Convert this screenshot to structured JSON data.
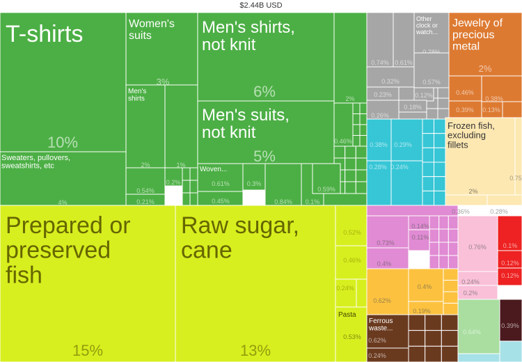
{
  "chart_data": {
    "type": "treemap",
    "title": "$2.44B USD",
    "colors": {
      "textiles": "#4caf45",
      "foodstuffs": "#d7ef1f",
      "machinery": "#a6a6a6",
      "metals_precious": "#dd7a32",
      "animal": "#fde8b2",
      "plastics": "#37c6d6",
      "chemicals": "#e08bd3",
      "vegetable": "#fcc23f",
      "instruments": "#f9c0d8",
      "transport": "#ee2222",
      "stone_glass": "#a9dea0",
      "metals_base": "#6a3a1f",
      "misc": "#a7e1e8",
      "dark": "#4a1a1e",
      "white": "#ffffff"
    },
    "items": [
      {
        "label": "T-shirts",
        "value": "10%",
        "group": "textiles"
      },
      {
        "label": "Women's suits",
        "value": "3%",
        "group": "textiles"
      },
      {
        "label": "Men's shirts, not knit",
        "value": "6%",
        "group": "textiles"
      },
      {
        "label": "Men's suits, not knit",
        "value": "5%",
        "group": "textiles"
      },
      {
        "label": "Men's shirts",
        "value": "2%",
        "group": "textiles"
      },
      {
        "label": "Sweaters, pullovers, sweatshirts, etc",
        "value": "4%",
        "group": "textiles"
      },
      {
        "label": "Woven...",
        "value": "0.61%",
        "group": "textiles"
      },
      {
        "label": "",
        "value": "1%",
        "group": "textiles"
      },
      {
        "label": "",
        "value": "2%",
        "group": "textiles"
      },
      {
        "label": "",
        "value": "0.46%",
        "group": "textiles"
      },
      {
        "label": "",
        "value": "0.54%",
        "group": "textiles"
      },
      {
        "label": "",
        "value": "0.2%",
        "group": "textiles"
      },
      {
        "label": "",
        "value": "0.21%",
        "group": "textiles"
      },
      {
        "label": "",
        "value": "0.45%",
        "group": "textiles"
      },
      {
        "label": "",
        "value": "0.3%",
        "group": "textiles"
      },
      {
        "label": "",
        "value": "0.84%",
        "group": "textiles"
      },
      {
        "label": "",
        "value": "0.1%",
        "group": "textiles"
      },
      {
        "label": "",
        "value": "0.59%",
        "group": "textiles"
      },
      {
        "label": "Prepared or preserved fish",
        "value": "15%",
        "group": "foodstuffs"
      },
      {
        "label": "Raw sugar, cane",
        "value": "13%",
        "group": "foodstuffs"
      },
      {
        "label": "",
        "value": "0.52%",
        "group": "foodstuffs"
      },
      {
        "label": "",
        "value": "0.46%",
        "group": "foodstuffs"
      },
      {
        "label": "",
        "value": "0.24%",
        "group": "foodstuffs"
      },
      {
        "label": "Pasta",
        "value": "0.53%",
        "group": "foodstuffs"
      },
      {
        "label": "Other clock or watch...",
        "value": "0.78%",
        "group": "machinery"
      },
      {
        "label": "",
        "value": "0.74%",
        "group": "machinery"
      },
      {
        "label": "",
        "value": "0.61%",
        "group": "machinery"
      },
      {
        "label": "",
        "value": "0.32%",
        "group": "machinery"
      },
      {
        "label": "",
        "value": "0.57%",
        "group": "machinery"
      },
      {
        "label": "",
        "value": "0.23%",
        "group": "machinery"
      },
      {
        "label": "",
        "value": "0.12%",
        "group": "machinery"
      },
      {
        "label": "",
        "value": "0.18%",
        "group": "machinery"
      },
      {
        "label": "",
        "value": "0.26%",
        "group": "machinery"
      },
      {
        "label": "Jewelry of precious metal",
        "value": "2%",
        "group": "metals_precious"
      },
      {
        "label": "",
        "value": "0.46%",
        "group": "metals_precious"
      },
      {
        "label": "",
        "value": "0.38%",
        "group": "metals_precious"
      },
      {
        "label": "",
        "value": "0.39%",
        "group": "metals_precious"
      },
      {
        "label": "",
        "value": "0.13%",
        "group": "metals_precious"
      },
      {
        "label": "Frozen fish, excluding fillets",
        "value": "2%",
        "group": "animal"
      },
      {
        "label": "",
        "value": "0.75%",
        "group": "animal"
      },
      {
        "label": "",
        "value": "0.36%",
        "group": "animal"
      },
      {
        "label": "",
        "value": "0.28%",
        "group": "animal"
      },
      {
        "label": "",
        "value": "0.38%",
        "group": "plastics"
      },
      {
        "label": "",
        "value": "0.29%",
        "group": "plastics"
      },
      {
        "label": "",
        "value": "0.28%",
        "group": "plastics"
      },
      {
        "label": "",
        "value": "0.24%",
        "group": "plastics"
      },
      {
        "label": "",
        "value": "0.73%",
        "group": "chemicals"
      },
      {
        "label": "",
        "value": "0.14%",
        "group": "chemicals"
      },
      {
        "label": "",
        "value": "0.11%",
        "group": "chemicals"
      },
      {
        "label": "",
        "value": "0.4%",
        "group": "chemicals"
      },
      {
        "label": "",
        "value": "0.62%",
        "group": "vegetable"
      },
      {
        "label": "",
        "value": "0.4%",
        "group": "vegetable"
      },
      {
        "label": "",
        "value": "0.19%",
        "group": "vegetable"
      },
      {
        "label": "",
        "value": "0.76%",
        "group": "instruments"
      },
      {
        "label": "",
        "value": "0.24%",
        "group": "instruments"
      },
      {
        "label": "",
        "value": "0.2%",
        "group": "instruments"
      },
      {
        "label": "",
        "value": "0.1%",
        "group": "transport"
      },
      {
        "label": "",
        "value": "0.12%",
        "group": "transport"
      },
      {
        "label": "",
        "value": "0.12%",
        "group": "transport"
      },
      {
        "label": "",
        "value": "0.64%",
        "group": "stone_glass"
      },
      {
        "label": "",
        "value": "0.39%",
        "group": "dark"
      },
      {
        "label": "Ferrous waste...",
        "value": "0.62%",
        "group": "metals_base"
      },
      {
        "label": "",
        "value": "0.24%",
        "group": "metals_base"
      }
    ]
  }
}
